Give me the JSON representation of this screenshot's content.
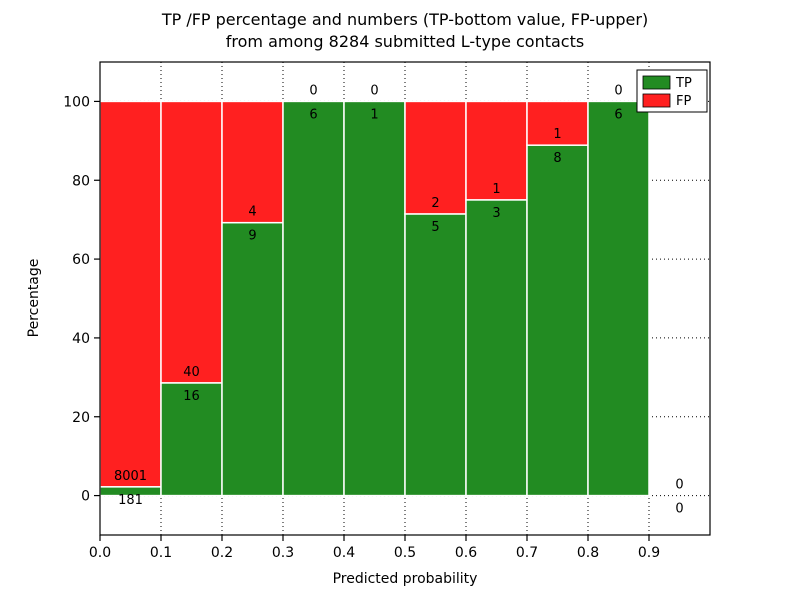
{
  "title": {
    "line1": "TP /FP percentage and numbers (TP-bottom value, FP-upper)",
    "line2": "from among 8284 submitted L-type contacts"
  },
  "chart_data": {
    "type": "bar",
    "stacked": true,
    "title": "TP /FP percentage and numbers (TP-bottom value, FP-upper)\nfrom among 8284 submitted L-type contacts",
    "xlabel": "Predicted probability",
    "ylabel": "Percentage",
    "total_submitted": 8284,
    "xlim": [
      0.0,
      1.0
    ],
    "ylim": [
      -10,
      110
    ],
    "xtick_values": [
      0.0,
      0.1,
      0.2,
      0.3,
      0.4,
      0.5,
      0.6,
      0.7,
      0.8,
      0.9
    ],
    "xtick_labels": [
      "0.0",
      "0.1",
      "0.2",
      "0.3",
      "0.4",
      "0.5",
      "0.6",
      "0.7",
      "0.8",
      "0.9"
    ],
    "ytick_values": [
      0,
      20,
      40,
      60,
      80,
      100
    ],
    "ytick_labels": [
      "0",
      "20",
      "40",
      "60",
      "80",
      "100"
    ],
    "grid": true,
    "colors": {
      "tp": "#228B22",
      "fp": "#ff2020",
      "bar_edge": "#ffffff",
      "grid": "#000000"
    },
    "legend": {
      "position": "upper-right",
      "entries": [
        {
          "label": "TP",
          "color": "#228B22"
        },
        {
          "label": "FP",
          "color": "#ff2020"
        }
      ]
    },
    "bins": [
      {
        "x0": 0.0,
        "x1": 0.1,
        "tp": 181,
        "fp": 8001,
        "tp_pct": 2.21
      },
      {
        "x0": 0.1,
        "x1": 0.2,
        "tp": 16,
        "fp": 40,
        "tp_pct": 28.57
      },
      {
        "x0": 0.2,
        "x1": 0.3,
        "tp": 9,
        "fp": 4,
        "tp_pct": 69.23
      },
      {
        "x0": 0.3,
        "x1": 0.4,
        "tp": 6,
        "fp": 0,
        "tp_pct": 100
      },
      {
        "x0": 0.4,
        "x1": 0.5,
        "tp": 1,
        "fp": 0,
        "tp_pct": 100
      },
      {
        "x0": 0.5,
        "x1": 0.6,
        "tp": 5,
        "fp": 2,
        "tp_pct": 71.43
      },
      {
        "x0": 0.6,
        "x1": 0.7,
        "tp": 3,
        "fp": 1,
        "tp_pct": 75
      },
      {
        "x0": 0.7,
        "x1": 0.8,
        "tp": 8,
        "fp": 1,
        "tp_pct": 88.89
      },
      {
        "x0": 0.8,
        "x1": 0.9,
        "tp": 6,
        "fp": 0,
        "tp_pct": 100
      },
      {
        "x0": 0.9,
        "x1": 1.0,
        "tp": 0,
        "fp": 0,
        "tp_pct": null
      }
    ]
  }
}
